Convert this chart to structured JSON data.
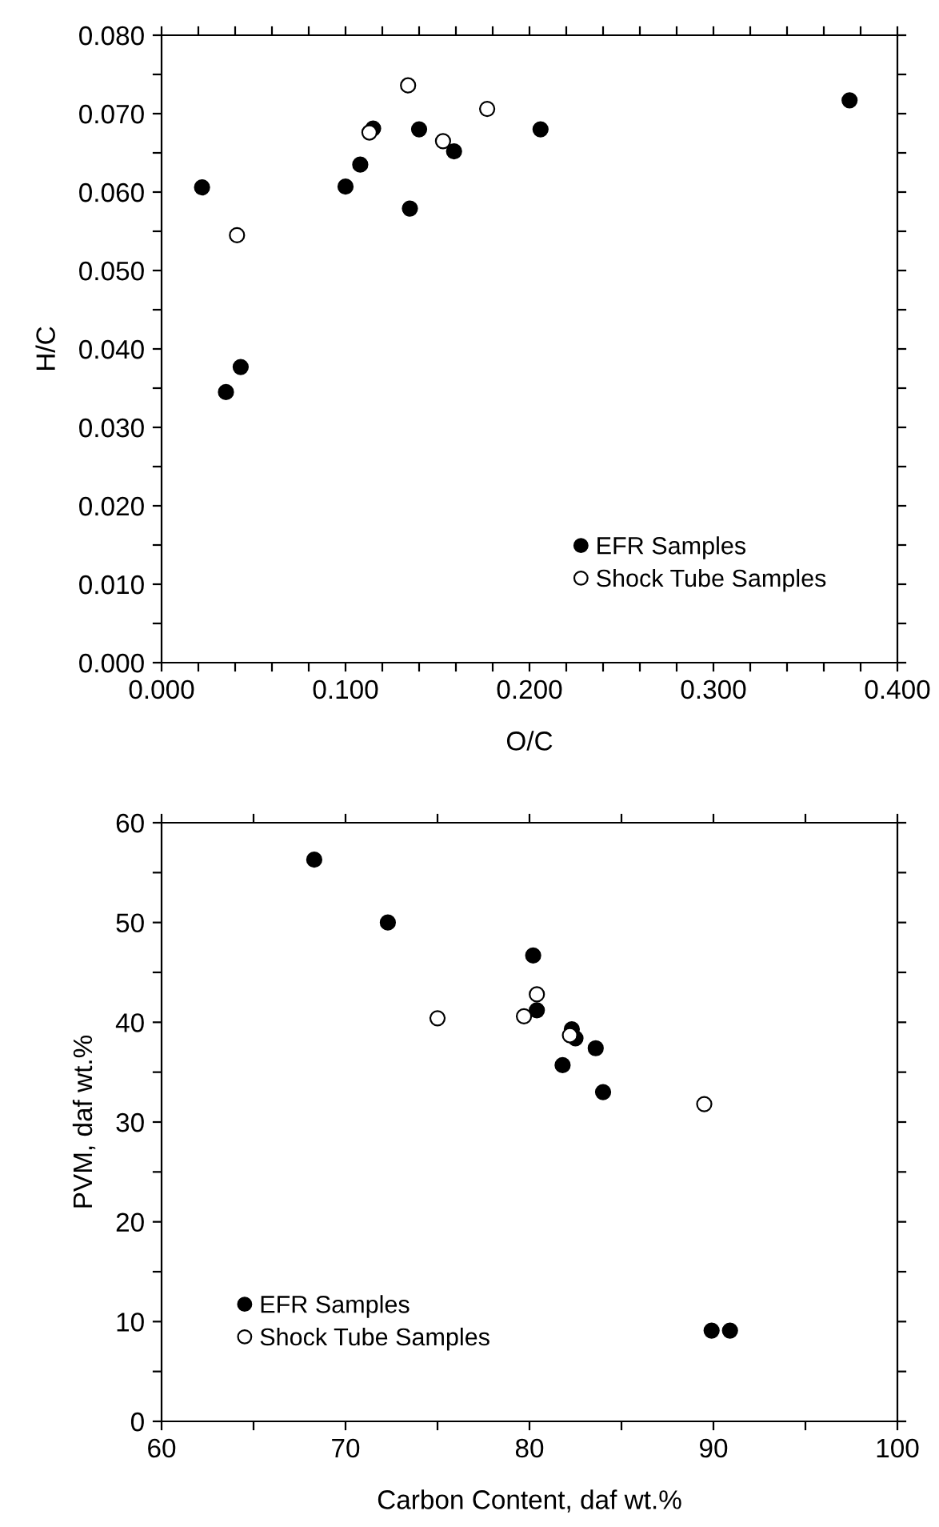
{
  "chart_data": [
    {
      "type": "scatter",
      "xlabel": "O/C",
      "ylabel": "H/C",
      "xlim": [
        0,
        0.4
      ],
      "ylim": [
        0,
        0.08
      ],
      "xticks": [
        {
          "value": 0,
          "label": "0.000"
        },
        {
          "value": 0.02,
          "label": null
        },
        {
          "value": 0.04,
          "label": null
        },
        {
          "value": 0.06,
          "label": null
        },
        {
          "value": 0.08,
          "label": null
        },
        {
          "value": 0.1,
          "label": "0.100"
        },
        {
          "value": 0.12,
          "label": null
        },
        {
          "value": 0.14,
          "label": null
        },
        {
          "value": 0.16,
          "label": null
        },
        {
          "value": 0.18,
          "label": null
        },
        {
          "value": 0.2,
          "label": "0.200"
        },
        {
          "value": 0.22,
          "label": null
        },
        {
          "value": 0.24,
          "label": null
        },
        {
          "value": 0.26,
          "label": null
        },
        {
          "value": 0.28,
          "label": null
        },
        {
          "value": 0.3,
          "label": "0.300"
        },
        {
          "value": 0.32,
          "label": null
        },
        {
          "value": 0.34,
          "label": null
        },
        {
          "value": 0.36,
          "label": null
        },
        {
          "value": 0.38,
          "label": null
        },
        {
          "value": 0.4,
          "label": "0.400"
        }
      ],
      "yticks": [
        {
          "value": 0,
          "label": "0.000"
        },
        {
          "value": 0.005,
          "label": null
        },
        {
          "value": 0.01,
          "label": "0.010"
        },
        {
          "value": 0.015,
          "label": null
        },
        {
          "value": 0.02,
          "label": "0.020"
        },
        {
          "value": 0.025,
          "label": null
        },
        {
          "value": 0.03,
          "label": "0.030"
        },
        {
          "value": 0.035,
          "label": null
        },
        {
          "value": 0.04,
          "label": "0.040"
        },
        {
          "value": 0.045,
          "label": null
        },
        {
          "value": 0.05,
          "label": "0.050"
        },
        {
          "value": 0.055,
          "label": null
        },
        {
          "value": 0.06,
          "label": "0.060"
        },
        {
          "value": 0.065,
          "label": null
        },
        {
          "value": 0.07,
          "label": "0.070"
        },
        {
          "value": 0.075,
          "label": null
        },
        {
          "value": 0.08,
          "label": "0.080"
        }
      ],
      "grid": false,
      "legend": "bottom right",
      "marker": "circle",
      "series": [
        {
          "name": "EFR Samples",
          "color": "#000000",
          "x": [
            0.022,
            0.035,
            0.043,
            0.1,
            0.108,
            0.115,
            0.135,
            0.14,
            0.159,
            0.206,
            0.374
          ],
          "values": [
            0.0606,
            0.0345,
            0.0377,
            0.0607,
            0.0635,
            0.0681,
            0.0579,
            0.068,
            0.0652,
            0.068,
            0.0717
          ]
        },
        {
          "name": "Shock Tube Samples",
          "color": "#ffffff",
          "x": [
            0.041,
            0.113,
            0.134,
            0.153,
            0.177
          ],
          "values": [
            0.0545,
            0.0676,
            0.0736,
            0.0665,
            0.0706
          ]
        }
      ]
    },
    {
      "type": "scatter",
      "xlabel": "Carbon Content, daf wt.%",
      "ylabel": "PVM, daf wt.%",
      "xlim": [
        60,
        100
      ],
      "ylim": [
        0,
        60
      ],
      "xticks": [
        60,
        {
          "value": 65,
          "label": null
        },
        70,
        {
          "value": 75,
          "label": null
        },
        80,
        {
          "value": 85,
          "label": null
        },
        90,
        {
          "value": 95,
          "label": null
        },
        100
      ],
      "yticks": [
        0,
        {
          "value": 5,
          "label": null
        },
        10,
        {
          "value": 15,
          "label": null
        },
        20,
        {
          "value": 25,
          "label": null
        },
        30,
        {
          "value": 35,
          "label": null
        },
        40,
        {
          "value": 45,
          "label": null
        },
        50,
        {
          "value": 55,
          "label": null
        },
        60
      ],
      "grid": false,
      "legend": "bottom left",
      "marker": "circle",
      "series": [
        {
          "name": "EFR Samples",
          "color": "#000000",
          "x": [
            68.3,
            72.3,
            80.2,
            80.4,
            82.3,
            82.5,
            83.6,
            81.8,
            84.0,
            89.9,
            90.9
          ],
          "values": [
            56.3,
            50.0,
            46.7,
            41.2,
            39.3,
            38.4,
            37.4,
            35.7,
            33.0,
            9.1,
            9.1
          ]
        },
        {
          "name": "Shock Tube Samples",
          "color": "#ffffff",
          "x": [
            75.0,
            79.7,
            80.4,
            82.2,
            89.5
          ],
          "values": [
            40.4,
            40.6,
            42.8,
            38.7,
            31.8
          ]
        }
      ]
    }
  ]
}
